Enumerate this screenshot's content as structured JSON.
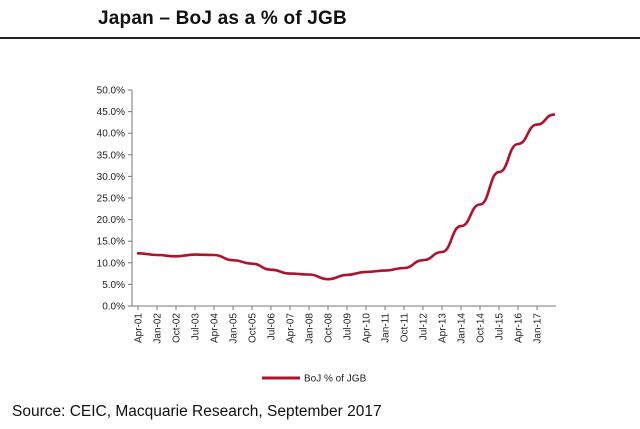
{
  "title": "Japan – BoJ as a % of JGB",
  "source": "Source: CEIC, Macquarie Research, September 2017",
  "chart_data": {
    "type": "line",
    "xlabel": "",
    "ylabel": "",
    "ylim": [
      0,
      50
    ],
    "y_tick_values": [
      0,
      5,
      10,
      15,
      20,
      25,
      30,
      35,
      40,
      45,
      50
    ],
    "y_tick_labels": [
      "0.0%",
      "5.0%",
      "10.0%",
      "15.0%",
      "20.0%",
      "25.0%",
      "30.0%",
      "35.0%",
      "40.0%",
      "45.0%",
      "50.0%"
    ],
    "x_tick_labels": [
      "Apr-01",
      "Jan-02",
      "Oct-02",
      "Jul-03",
      "Apr-04",
      "Jan-05",
      "Oct-05",
      "Jul-06",
      "Apr-07",
      "Jan-08",
      "Oct-08",
      "Jul-09",
      "Apr-10",
      "Jan-11",
      "Oct-11",
      "Jul-12",
      "Apr-13",
      "Jan-14",
      "Oct-14",
      "Jul-15",
      "Apr-16",
      "Jan-17"
    ],
    "grid": false,
    "legend_position": "bottom",
    "color": "#b0112b",
    "series": [
      {
        "name": "BoJ % of JGB",
        "x": [
          "Apr-01",
          "Jan-02",
          "Oct-02",
          "Jul-03",
          "Apr-04",
          "Jan-05",
          "Oct-05",
          "Jul-06",
          "Apr-07",
          "Jan-08",
          "Oct-08",
          "Jul-09",
          "Apr-10",
          "Jan-11",
          "Oct-11",
          "Jul-12",
          "Apr-13",
          "Jan-14",
          "Oct-14",
          "Jul-15",
          "Apr-16",
          "Jan-17",
          "Sep-17"
        ],
        "values": [
          12.2,
          11.8,
          11.5,
          11.9,
          11.8,
          10.6,
          9.8,
          8.4,
          7.5,
          7.3,
          6.2,
          7.2,
          7.9,
          8.2,
          8.8,
          10.6,
          12.5,
          18.5,
          23.5,
          31.0,
          37.5,
          42.0,
          44.3
        ]
      }
    ]
  }
}
